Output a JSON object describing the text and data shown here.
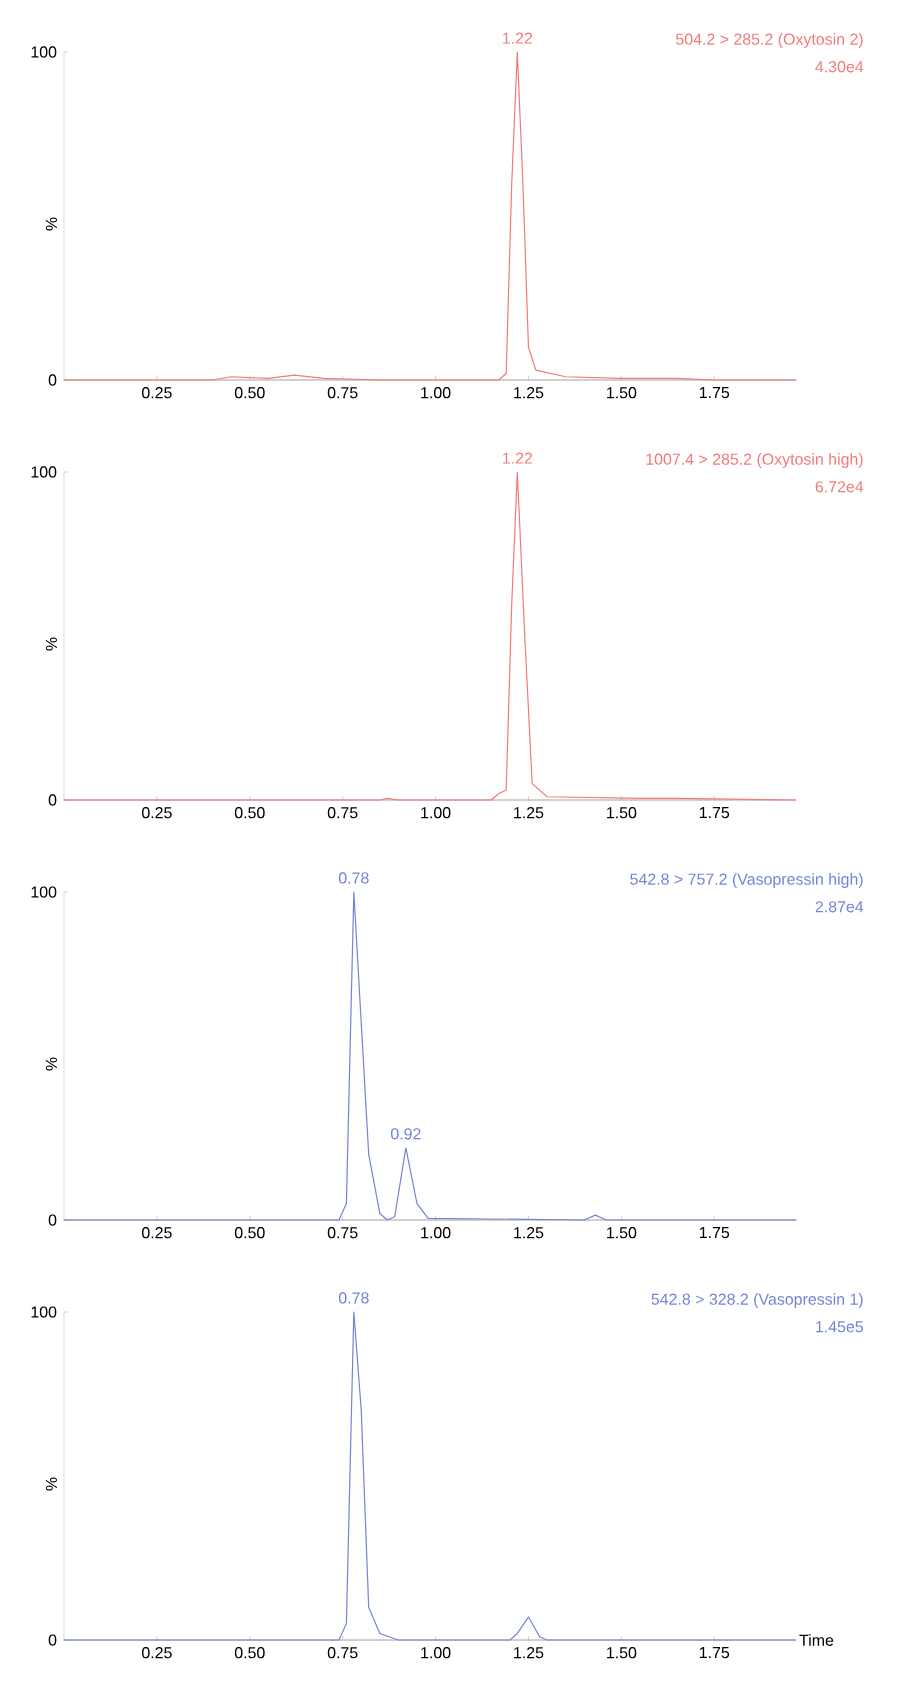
{
  "chart_data": [
    {
      "type": "line",
      "ylabel": "%",
      "xlim": [
        0,
        1.97
      ],
      "ylim": [
        0,
        100
      ],
      "xticks": [
        0.25,
        {
          "value": 0.5,
          "label": "0.50"
        },
        0.75,
        {
          "value": 1,
          "label": "1.00"
        },
        1.25,
        {
          "value": 1.5,
          "label": "1.50"
        },
        1.75
      ],
      "yticks": [
        0,
        100
      ],
      "x": [
        0,
        0.4,
        0.45,
        0.55,
        0.62,
        0.7,
        0.85,
        1.17,
        1.19,
        1.205,
        1.22,
        1.235,
        1.25,
        1.27,
        1.35,
        1.5,
        1.65,
        1.75,
        1.97
      ],
      "series": [
        {
          "color": "#f07a7a",
          "values": [
            0,
            0,
            1,
            0.5,
            1.5,
            0.5,
            0,
            0,
            2,
            60,
            100,
            60,
            10,
            3,
            1,
            0.5,
            0.5,
            0,
            0
          ]
        }
      ],
      "annotations": [
        "504.2 > 285.2 (Oxytosin 2)",
        "4.30e4",
        {
          "text": "1.22",
          "x": 1.22,
          "y": 100
        }
      ]
    },
    {
      "type": "line",
      "ylabel": "%",
      "xlim": [
        0,
        1.97
      ],
      "ylim": [
        0,
        100
      ],
      "xticks": [
        0.25,
        {
          "value": 0.5,
          "label": "0.50"
        },
        0.75,
        {
          "value": 1,
          "label": "1.00"
        },
        1.25,
        {
          "value": 1.5,
          "label": "1.50"
        },
        1.75
      ],
      "yticks": [
        0,
        100
      ],
      "x": [
        0,
        0.85,
        0.87,
        0.9,
        1.15,
        1.17,
        1.19,
        1.205,
        1.22,
        1.24,
        1.26,
        1.3,
        1.55,
        1.65,
        1.97
      ],
      "series": [
        {
          "color": "#f07a7a",
          "values": [
            0,
            0,
            0.5,
            0,
            0,
            2,
            3,
            60,
            100,
            50,
            5,
            1,
            0.5,
            0.5,
            0
          ]
        }
      ],
      "annotations": [
        "1007.4 > 285.2 (Oxytosin high)",
        "6.72e4",
        {
          "text": "1.22",
          "x": 1.22,
          "y": 100
        }
      ]
    },
    {
      "type": "line",
      "ylabel": "%",
      "xlim": [
        0,
        1.97
      ],
      "ylim": [
        0,
        100
      ],
      "xticks": [
        0.25,
        {
          "value": 0.5,
          "label": "0.50"
        },
        0.75,
        {
          "value": 1,
          "label": "1.00"
        },
        1.25,
        {
          "value": 1.5,
          "label": "1.50"
        },
        1.75
      ],
      "yticks": [
        0,
        100
      ],
      "x": [
        0,
        0.74,
        0.76,
        0.78,
        0.8,
        0.82,
        0.85,
        0.87,
        0.89,
        0.92,
        0.95,
        0.98,
        1.4,
        1.43,
        1.46,
        1.97
      ],
      "series": [
        {
          "color": "#7383d6",
          "values": [
            0,
            0,
            5,
            100,
            60,
            20,
            2,
            0,
            1,
            22,
            5,
            0.5,
            0,
            1.5,
            0,
            0
          ]
        }
      ],
      "annotations": [
        "542.8 > 757.2 (Vasopressin high)",
        "2.87e4",
        {
          "text": "0.78",
          "x": 0.78,
          "y": 100
        },
        {
          "text": "0.92",
          "x": 0.92,
          "y": 22
        }
      ]
    },
    {
      "type": "line",
      "ylabel": "%",
      "xlabel": "Time",
      "xlim": [
        0,
        1.97
      ],
      "ylim": [
        0,
        100
      ],
      "xticks": [
        0.25,
        {
          "value": 0.5,
          "label": "0.50"
        },
        0.75,
        {
          "value": 1,
          "label": "1.00"
        },
        1.25,
        {
          "value": 1.5,
          "label": "1.50"
        },
        1.75
      ],
      "yticks": [
        0,
        100
      ],
      "x": [
        0,
        0.74,
        0.76,
        0.78,
        0.8,
        0.82,
        0.85,
        0.9,
        1.2,
        1.22,
        1.25,
        1.28,
        1.3,
        1.97
      ],
      "series": [
        {
          "color": "#7383d6",
          "values": [
            0,
            0,
            5,
            100,
            70,
            10,
            2,
            0,
            0,
            2,
            7,
            1,
            0,
            0
          ]
        }
      ],
      "annotations": [
        "542.8 > 328.2 (Vasopressin 1)",
        "1.45e5",
        {
          "text": "0.78",
          "x": 0.78,
          "y": 100
        }
      ]
    }
  ]
}
